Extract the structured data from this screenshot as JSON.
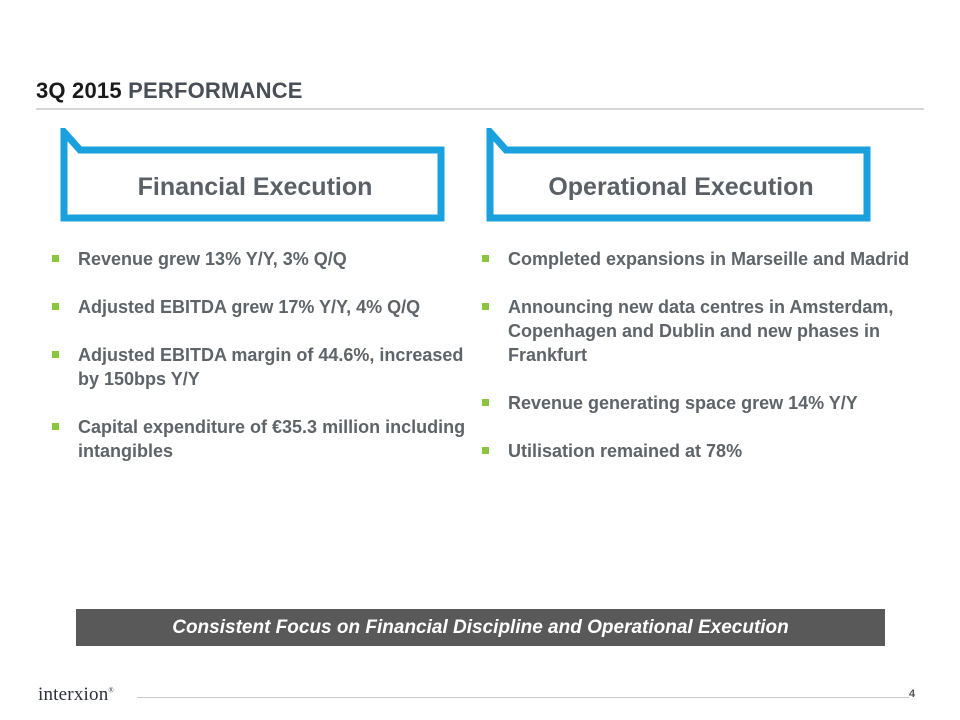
{
  "title": {
    "prefix": "3Q 2015",
    "rest": "PERFORMANCE"
  },
  "left": {
    "heading": "Financial Execution",
    "bullets": [
      "Revenue grew 13% Y/Y, 3% Q/Q",
      "Adjusted EBITDA grew 17% Y/Y, 4% Q/Q",
      "Adjusted EBITDA margin of 44.6%, increased by 150bps Y/Y",
      "Capital expenditure of €35.3 million including intangibles"
    ]
  },
  "right": {
    "heading": "Operational Execution",
    "bullets": [
      "Completed expansions in Marseille and Madrid",
      "Announcing new data centres in Amsterdam, Copenhagen and Dublin and new phases in Frankfurt",
      "Revenue generating space grew 14% Y/Y",
      "Utilisation remained at 78%"
    ]
  },
  "banner": "Consistent Focus on Financial Discipline and Operational Execution",
  "footer": {
    "logo": "interxion",
    "page": "4"
  },
  "colors": {
    "callout_border": "#1aa0dc",
    "bullet": "#8cc63f",
    "banner_bg": "#595959"
  }
}
